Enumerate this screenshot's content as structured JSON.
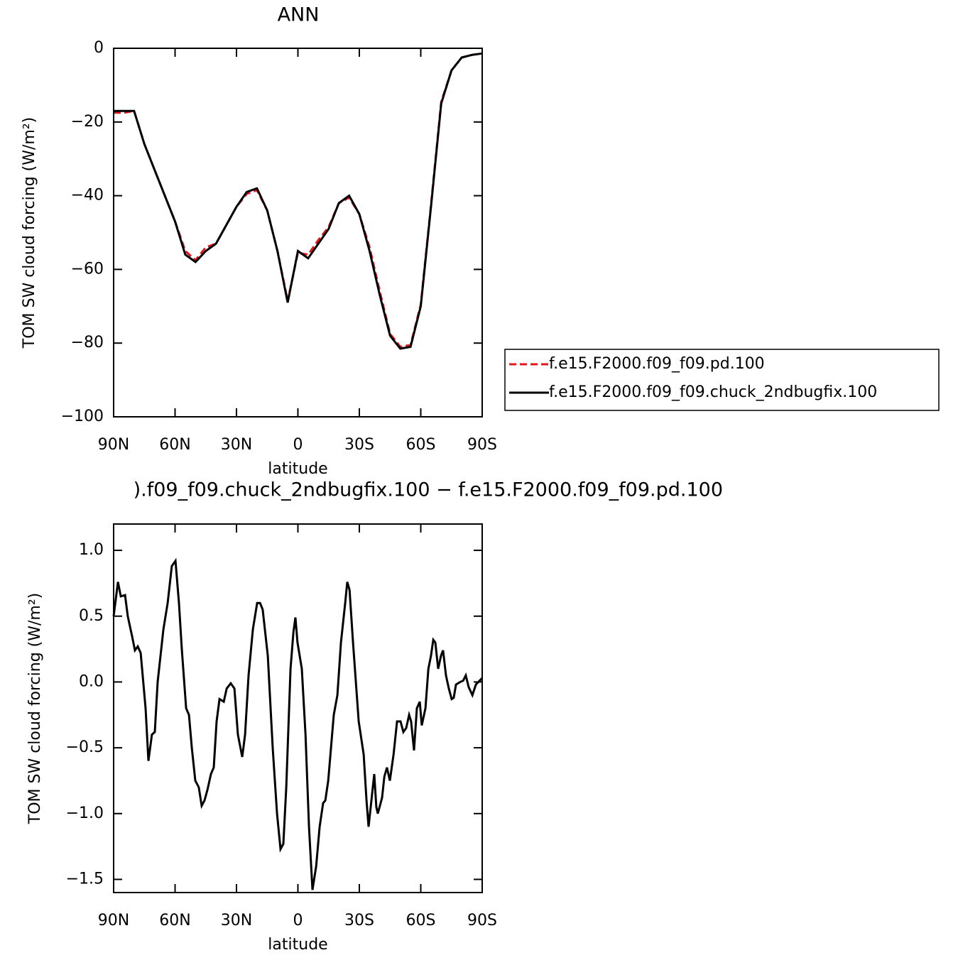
{
  "chart_data": [
    {
      "type": "line",
      "title": "ANN",
      "x_label": "latitude",
      "y_label": "TOM SW cloud forcing (W/m²)",
      "xlim": [
        90,
        -90
      ],
      "ylim": [
        0,
        -100
      ],
      "xticks": [
        {
          "value": 90,
          "label": "90N"
        },
        {
          "value": 60,
          "label": "60N"
        },
        {
          "value": 30,
          "label": "30N"
        },
        0,
        {
          "value": -30,
          "label": "30S"
        },
        {
          "value": -60,
          "label": "60S"
        },
        {
          "value": -90,
          "label": "90S"
        }
      ],
      "yticks": [
        0,
        {
          "value": -20,
          "label": "−20"
        },
        {
          "value": -40,
          "label": "−40"
        },
        {
          "value": -60,
          "label": "−60"
        },
        {
          "value": -80,
          "label": "−80"
        },
        {
          "value": -100,
          "label": "−100"
        }
      ],
      "legend": "right",
      "x": [
        90,
        85,
        80,
        75,
        70,
        65,
        60,
        55,
        50,
        45,
        40,
        35,
        30,
        25,
        20,
        15,
        10,
        5,
        0,
        -5,
        -10,
        -15,
        -20,
        -25,
        -30,
        -35,
        -40,
        -45,
        -50,
        -55,
        -60,
        -65,
        -70,
        -75,
        -80,
        -85,
        -90
      ],
      "series": [
        {
          "name": "f.e15.F2000.f09_f09.pd.100",
          "color": "#e8141a",
          "line_style": "dashed",
          "values": [
            -17.5,
            -17.5,
            -17,
            -26,
            -33,
            -40,
            -47,
            -55,
            -57.5,
            -54,
            -53,
            -48,
            -43,
            -39.5,
            -38.5,
            -44,
            -55,
            -68.5,
            -55.5,
            -56,
            -52,
            -48.5,
            -42,
            -40.5,
            -45,
            -54,
            -66,
            -77.5,
            -81,
            -80.5,
            -69.5,
            -42.5,
            -14.5,
            -6,
            -2.5,
            -1.8,
            -1.4
          ]
        },
        {
          "name": "f.e15.F2000.f09_f09.chuck_2ndbugfix.100",
          "color": "#000000",
          "line_style": "solid",
          "values": [
            -17,
            -17,
            -17,
            -26,
            -33,
            -40,
            -47,
            -56,
            -58,
            -55,
            -53,
            -48,
            -43,
            -39,
            -38,
            -44,
            -55,
            -69,
            -55,
            -57,
            -53,
            -49,
            -42,
            -40,
            -45,
            -55,
            -67,
            -78,
            -81.5,
            -81,
            -70,
            -43,
            -15,
            -6,
            -2.5,
            -1.8,
            -1.4
          ]
        }
      ]
    },
    {
      "type": "line",
      "title": ").f09_f09.chuck_2ndbugfix.100 − f.e15.F2000.f09_f09.pd.100",
      "x_label": "latitude",
      "y_label": "TOM SW cloud forcing (W/m²)",
      "xlim": [
        90,
        -90
      ],
      "ylim": [
        1.2,
        -1.6
      ],
      "xticks": [
        {
          "value": 90,
          "label": "90N"
        },
        {
          "value": 60,
          "label": "60N"
        },
        {
          "value": 30,
          "label": "30N"
        },
        0,
        {
          "value": -30,
          "label": "30S"
        },
        {
          "value": -60,
          "label": "60S"
        },
        {
          "value": -90,
          "label": "90S"
        }
      ],
      "yticks": [
        {
          "value": 1,
          "label": "1.0"
        },
        0.5,
        {
          "value": 0,
          "label": "0.0"
        },
        {
          "value": -0.5,
          "label": "−0.5"
        },
        {
          "value": -1,
          "label": "−1.0"
        },
        {
          "value": -1.5,
          "label": "−1.5"
        }
      ],
      "x": [
        90,
        87.9,
        86.5,
        84.4,
        83.1,
        81.0,
        79.6,
        78.2,
        76.8,
        74.4,
        73.0,
        71.3,
        69.9,
        68.5,
        65.7,
        63.6,
        61.6,
        59.8,
        58.1,
        56.7,
        54.6,
        53.2,
        51.8,
        50.1,
        48.4,
        47.0,
        45.6,
        44.2,
        42.5,
        41.1,
        39.7,
        38.3,
        36.2,
        34.8,
        32.8,
        31.0,
        29.3,
        27.2,
        25.8,
        24.1,
        22.0,
        19.9,
        18.5,
        17.2,
        14.7,
        12.3,
        10.2,
        8.5,
        7.1,
        5.7,
        3.6,
        2.2,
        1.2,
        0.2,
        -1.9,
        -3.7,
        -5.4,
        -7.1,
        -8.9,
        -10.6,
        -12.3,
        -13.4,
        -14.8,
        -17.5,
        -19.3,
        -21.0,
        -23.1,
        -24.1,
        -25.2,
        -26.9,
        -29.7,
        -32.1,
        -33.5,
        -34.5,
        -35.9,
        -37.3,
        -38.3,
        -39.0,
        -41.1,
        -42.2,
        -43.5,
        -44.9,
        -46.7,
        -48.4,
        -50.1,
        -51.5,
        -52.9,
        -54.3,
        -55.3,
        -56.7,
        -58.1,
        -59.5,
        -60.5,
        -62.3,
        -63.7,
        -65.0,
        -66.1,
        -67.1,
        -68.5,
        -69.9,
        -70.9,
        -72.3,
        -73.7,
        -75.1,
        -76.1,
        -77.2,
        -79.3,
        -80.7,
        -82.0,
        -83.4,
        -85.2,
        -86.9,
        -90
      ],
      "series": [
        {
          "color": "#000000",
          "line_style": "solid",
          "values": [
            0.5,
            0.76,
            0.65,
            0.66,
            0.5,
            0.35,
            0.24,
            0.27,
            0.22,
            -0.2,
            -0.6,
            -0.4,
            -0.38,
            0.0,
            0.4,
            0.6,
            0.88,
            0.92,
            0.6,
            0.25,
            -0.2,
            -0.25,
            -0.5,
            -0.75,
            -0.8,
            -0.94,
            -0.9,
            -0.82,
            -0.7,
            -0.65,
            -0.3,
            -0.13,
            -0.15,
            -0.05,
            -0.01,
            -0.05,
            -0.4,
            -0.57,
            -0.4,
            0.05,
            0.4,
            0.6,
            0.6,
            0.55,
            0.2,
            -0.5,
            -1.0,
            -1.27,
            -1.23,
            -0.8,
            0.1,
            0.38,
            0.49,
            0.3,
            0.1,
            -0.4,
            -1.1,
            -1.58,
            -1.4,
            -1.1,
            -0.92,
            -0.9,
            -0.75,
            -0.25,
            -0.1,
            0.3,
            0.6,
            0.76,
            0.7,
            0.3,
            -0.3,
            -0.55,
            -0.9,
            -1.1,
            -0.9,
            -0.7,
            -0.95,
            -1.0,
            -0.88,
            -0.72,
            -0.65,
            -0.75,
            -0.55,
            -0.3,
            -0.3,
            -0.38,
            -0.35,
            -0.25,
            -0.3,
            -0.52,
            -0.2,
            -0.15,
            -0.33,
            -0.2,
            0.1,
            0.2,
            0.32,
            0.3,
            0.1,
            0.2,
            0.24,
            0.05,
            -0.05,
            -0.13,
            -0.12,
            -0.02,
            0.0,
            0.01,
            0.05,
            -0.04,
            -0.1,
            -0.02,
            0.03
          ]
        }
      ]
    }
  ]
}
